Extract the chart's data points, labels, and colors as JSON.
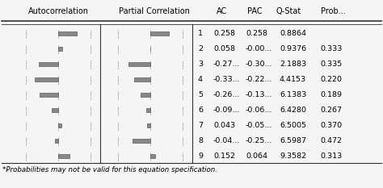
{
  "ac_values": [
    0.258,
    0.058,
    -0.27,
    -0.33,
    -0.26,
    -0.09,
    0.043,
    -0.04,
    0.152
  ],
  "pac_values": [
    0.258,
    -0.001,
    -0.3,
    -0.22,
    -0.13,
    -0.06,
    -0.05,
    -0.25,
    0.064
  ],
  "ac_labels": [
    "0.258",
    "0.058",
    "-0.27...",
    "-0.33...",
    "-0.26...",
    "-0.09...",
    "0.043",
    "-0.04...",
    "0.152"
  ],
  "pac_labels": [
    "0.258",
    "-0.00...",
    "-0.30...",
    "-0.22...",
    "-0.13...",
    "-0.06...",
    "-0.05...",
    "-0.25...",
    "0.064"
  ],
  "qstat_labels": [
    "0.8864",
    "0.9376",
    "2.1883",
    "4.4153",
    "6.1383",
    "6.4280",
    "6.5005",
    "6.5987",
    "9.3582"
  ],
  "prob_labels": [
    "",
    "0.333",
    "0.335",
    "0.220",
    "0.189",
    "0.267",
    "0.370",
    "0.472",
    "0.313"
  ],
  "header_ac": "Autocorrelation",
  "header_pac": "Partial Correlation",
  "header_AC": "AC",
  "header_PAC": "PAC",
  "header_qstat": "Q-Stat",
  "header_prob": "Prob...",
  "bar_color": "#888888",
  "bg_color": "#f5f5f5",
  "text_color": "#000000",
  "footnote": "*Probabilities may not be valid for this equation specification.",
  "max_bar_val": 0.45,
  "n_rows": 9
}
